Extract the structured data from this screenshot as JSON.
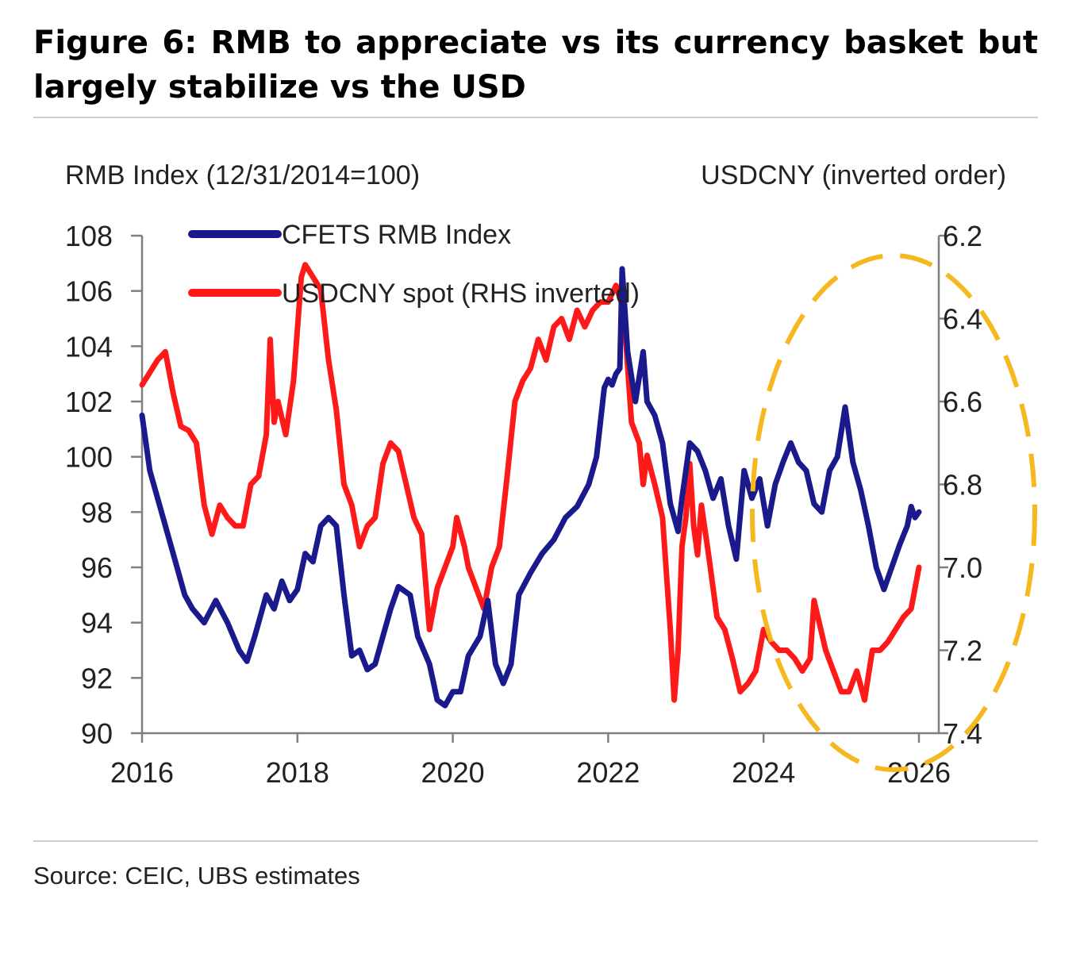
{
  "title": "Figure 6: RMB to appreciate vs its currency basket but largely stabilize vs the USD",
  "source": "Source: CEIC, UBS estimates",
  "chart_data": {
    "type": "line",
    "title": "Figure 6: RMB to appreciate vs its currency basket but largely stabilize vs the USD",
    "xlabel": "",
    "ylabel": "RMB Index (12/31/2014=100)",
    "y2label": "USDCNY (inverted order)",
    "xlim": [
      2016,
      2026
    ],
    "xticks": [
      "2016",
      "2018",
      "2020",
      "2022",
      "2024",
      "2026"
    ],
    "ylim": [
      90,
      108
    ],
    "yticks": [
      "90",
      "92",
      "94",
      "96",
      "98",
      "100",
      "102",
      "104",
      "106",
      "108"
    ],
    "y2lim": [
      6.2,
      7.4
    ],
    "y2_inverted": true,
    "y2ticks": [
      "6.2",
      "6.4",
      "6.6",
      "6.8",
      "7.0",
      "7.2",
      "7.4"
    ],
    "legend_position": "top-left",
    "colors": {
      "cfets": "#1a1a8c",
      "usdcny": "#ff1a1a",
      "highlight": "#f5b820",
      "axis": "#7f7f7f"
    },
    "annotation": "dashed-ellipse-highlighting-2024-2026",
    "series": [
      {
        "name": "CFETS RMB Index",
        "axis": "left",
        "x": [
          2016.0,
          2016.1,
          2016.25,
          2016.4,
          2016.55,
          2016.65,
          2016.8,
          2016.95,
          2017.1,
          2017.25,
          2017.35,
          2017.45,
          2017.6,
          2017.7,
          2017.8,
          2017.9,
          2018.0,
          2018.1,
          2018.2,
          2018.3,
          2018.4,
          2018.5,
          2018.6,
          2018.7,
          2018.8,
          2018.9,
          2019.0,
          2019.1,
          2019.2,
          2019.3,
          2019.45,
          2019.55,
          2019.7,
          2019.8,
          2019.9,
          2020.0,
          2020.1,
          2020.2,
          2020.35,
          2020.45,
          2020.55,
          2020.65,
          2020.75,
          2020.85,
          2021.0,
          2021.15,
          2021.3,
          2021.45,
          2021.6,
          2021.75,
          2021.85,
          2021.95,
          2022.0,
          2022.05,
          2022.1,
          2022.15,
          2022.18,
          2022.25,
          2022.35,
          2022.45,
          2022.5,
          2022.6,
          2022.7,
          2022.8,
          2022.9,
          2022.95,
          2023.05,
          2023.15,
          2023.25,
          2023.35,
          2023.45,
          2023.55,
          2023.65,
          2023.75,
          2023.85,
          2023.95,
          2024.05,
          2024.15,
          2024.25,
          2024.35,
          2024.45,
          2024.55,
          2024.65,
          2024.75,
          2024.85,
          2024.95,
          2025.05,
          2025.15,
          2025.25,
          2025.35,
          2025.45,
          2025.55,
          2025.65,
          2025.75,
          2025.85,
          2025.9,
          2025.95,
          2026.0
        ],
        "values": [
          101.5,
          99.5,
          98.0,
          96.5,
          95.0,
          94.5,
          94.0,
          94.8,
          94.0,
          93.0,
          92.6,
          93.5,
          95.0,
          94.5,
          95.5,
          94.8,
          95.2,
          96.5,
          96.2,
          97.5,
          97.8,
          97.5,
          95.0,
          92.8,
          93.0,
          92.3,
          92.5,
          93.5,
          94.5,
          95.3,
          95.0,
          93.5,
          92.5,
          91.2,
          91.0,
          91.5,
          91.5,
          92.8,
          93.5,
          94.8,
          92.5,
          91.8,
          92.5,
          95.0,
          95.8,
          96.5,
          97.0,
          97.8,
          98.2,
          99.0,
          100.0,
          102.5,
          102.8,
          102.6,
          103.0,
          103.2,
          106.8,
          103.8,
          102.0,
          103.8,
          102.0,
          101.5,
          100.5,
          98.3,
          97.3,
          98.5,
          100.5,
          100.2,
          99.5,
          98.5,
          99.2,
          97.5,
          96.3,
          99.5,
          98.5,
          99.2,
          97.5,
          99.0,
          99.8,
          100.5,
          99.8,
          99.5,
          98.3,
          98.0,
          99.5,
          100.0,
          101.8,
          99.8,
          98.8,
          97.5,
          96.0,
          95.2,
          96.0,
          96.8,
          97.5,
          98.2,
          97.8,
          98.0
        ]
      },
      {
        "name": "USDCNY spot (RHS inverted)",
        "axis": "right",
        "x": [
          2016.0,
          2016.1,
          2016.2,
          2016.3,
          2016.4,
          2016.5,
          2016.6,
          2016.7,
          2016.8,
          2016.9,
          2017.0,
          2017.1,
          2017.2,
          2017.3,
          2017.4,
          2017.5,
          2017.6,
          2017.65,
          2017.7,
          2017.75,
          2017.85,
          2017.95,
          2018.05,
          2018.1,
          2018.2,
          2018.3,
          2018.4,
          2018.5,
          2018.6,
          2018.7,
          2018.8,
          2018.9,
          2019.0,
          2019.1,
          2019.2,
          2019.3,
          2019.4,
          2019.5,
          2019.6,
          2019.7,
          2019.8,
          2019.9,
          2020.0,
          2020.05,
          2020.15,
          2020.2,
          2020.3,
          2020.4,
          2020.5,
          2020.6,
          2020.7,
          2020.8,
          2020.9,
          2021.0,
          2021.1,
          2021.2,
          2021.3,
          2021.4,
          2021.5,
          2021.6,
          2021.7,
          2021.8,
          2021.9,
          2022.0,
          2022.1,
          2022.15,
          2022.2,
          2022.3,
          2022.4,
          2022.45,
          2022.5,
          2022.6,
          2022.7,
          2022.8,
          2022.85,
          2022.9,
          2022.95,
          2023.0,
          2023.05,
          2023.1,
          2023.15,
          2023.2,
          2023.3,
          2023.4,
          2023.5,
          2023.6,
          2023.7,
          2023.8,
          2023.9,
          2024.0,
          2024.1,
          2024.2,
          2024.3,
          2024.4,
          2024.5,
          2024.6,
          2024.65,
          2024.7,
          2024.8,
          2024.9,
          2025.0,
          2025.1,
          2025.2,
          2025.3,
          2025.4,
          2025.5,
          2025.6,
          2025.7,
          2025.8,
          2025.9,
          2026.0
        ],
        "values": [
          6.56,
          6.53,
          6.5,
          6.48,
          6.58,
          6.66,
          6.67,
          6.7,
          6.85,
          6.92,
          6.85,
          6.88,
          6.9,
          6.9,
          6.8,
          6.78,
          6.68,
          6.45,
          6.65,
          6.6,
          6.68,
          6.55,
          6.3,
          6.27,
          6.3,
          6.33,
          6.5,
          6.62,
          6.8,
          6.85,
          6.95,
          6.9,
          6.88,
          6.75,
          6.7,
          6.72,
          6.8,
          6.88,
          6.92,
          7.15,
          7.05,
          7.0,
          6.95,
          6.88,
          6.95,
          7.0,
          7.05,
          7.1,
          7.0,
          6.95,
          6.78,
          6.6,
          6.55,
          6.52,
          6.45,
          6.5,
          6.42,
          6.4,
          6.45,
          6.38,
          6.42,
          6.38,
          6.36,
          6.36,
          6.32,
          6.35,
          6.38,
          6.65,
          6.7,
          6.8,
          6.73,
          6.8,
          6.88,
          7.15,
          7.32,
          7.2,
          6.95,
          6.88,
          6.75,
          6.9,
          6.97,
          6.85,
          6.98,
          7.12,
          7.15,
          7.22,
          7.3,
          7.28,
          7.25,
          7.15,
          7.18,
          7.2,
          7.2,
          7.22,
          7.25,
          7.22,
          7.08,
          7.12,
          7.2,
          7.25,
          7.3,
          7.3,
          7.25,
          7.32,
          7.2,
          7.2,
          7.18,
          7.15,
          7.12,
          7.1,
          7.0
        ]
      }
    ]
  }
}
